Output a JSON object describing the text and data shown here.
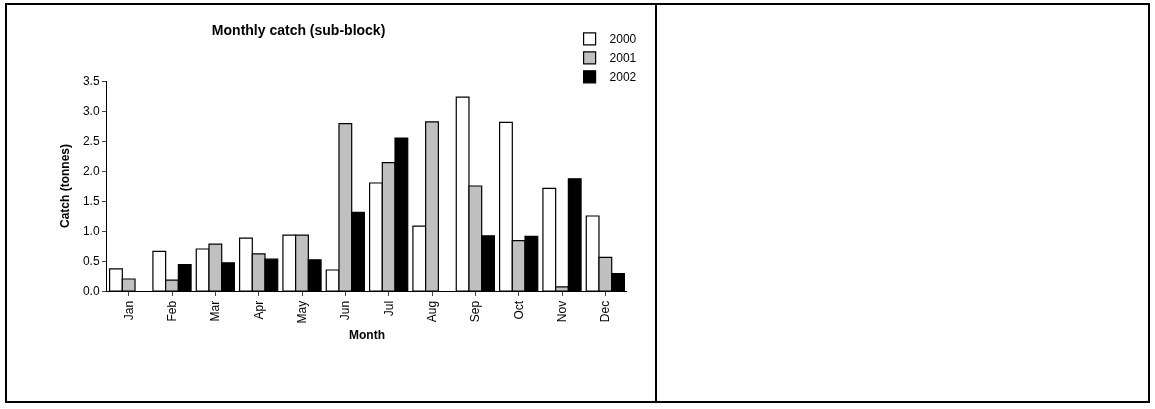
{
  "chart_data": {
    "type": "bar",
    "title": "Monthly catch (sub-block)",
    "xlabel": "Month",
    "ylabel": "Catch (tonnes)",
    "categories": [
      "Jan",
      "Feb",
      "Mar",
      "Apr",
      "May",
      "Jun",
      "Jul",
      "Aug",
      "Sep",
      "Oct",
      "Nov",
      "Dec"
    ],
    "series": [
      {
        "name": "2000",
        "color": "#ffffff",
        "values": [
          0.37,
          0.66,
          0.7,
          0.88,
          0.93,
          0.35,
          1.8,
          1.08,
          3.23,
          2.81,
          1.71,
          1.25
        ]
      },
      {
        "name": "2001",
        "color": "#c0c0c0",
        "values": [
          0.2,
          0.18,
          0.78,
          0.62,
          0.93,
          2.79,
          2.14,
          2.82,
          1.75,
          0.84,
          0.07,
          0.56
        ]
      },
      {
        "name": "2002",
        "color": "#000000",
        "values": [
          null,
          0.44,
          0.47,
          0.53,
          0.52,
          1.31,
          2.55,
          null,
          0.92,
          0.91,
          1.87,
          0.29
        ]
      }
    ],
    "ylim": [
      0,
      3.5
    ],
    "yticks": [
      {
        "value": 0,
        "label": "0.0"
      },
      {
        "value": 0.5,
        "label": "0.5"
      },
      {
        "value": 1,
        "label": "1.0"
      },
      {
        "value": 1.5,
        "label": "1.5"
      },
      {
        "value": 2,
        "label": "2.0"
      },
      {
        "value": 2.5,
        "label": "2.5"
      },
      {
        "value": 3,
        "label": "3.0"
      },
      {
        "value": 3.5,
        "label": "3.5"
      }
    ],
    "grid": false,
    "legend": "top right"
  }
}
